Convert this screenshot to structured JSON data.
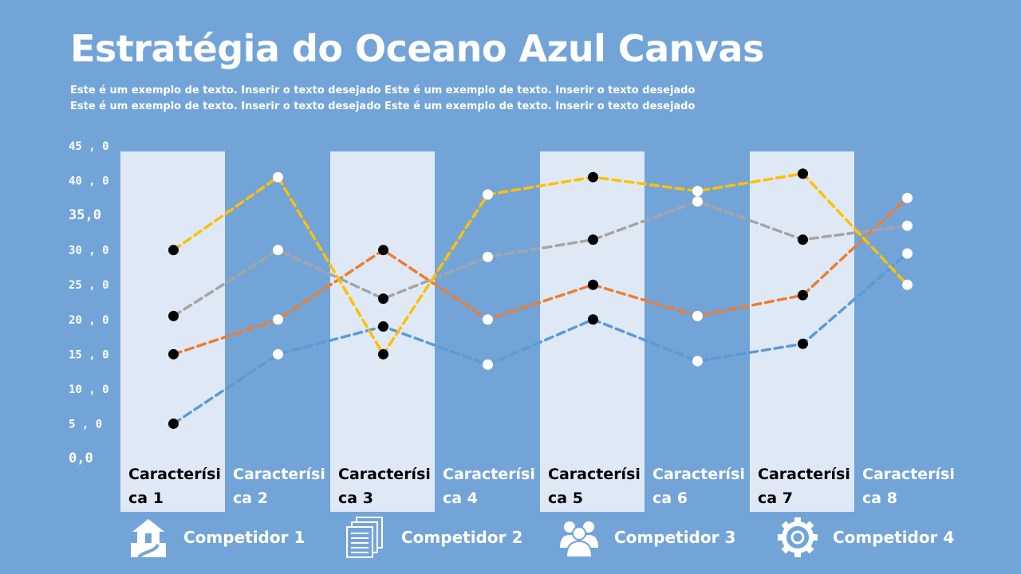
{
  "title": "Estratégia do Oceano Azul Canvas",
  "subtitle_lines": [
    "Este é um exemplo de texto. Inserir o texto desejado Este é um exemplo de texto. Inserir o texto desejado",
    "Este é um exemplo de texto. Inserir o texto desejado Este é um exemplo de texto. Inserir o texto desejado"
  ],
  "chart_data": {
    "type": "line",
    "categories": [
      "Característica 1",
      "Característica 2",
      "Característica 3",
      "Característica 4",
      "Característica 5",
      "Característica 6",
      "Característica 7",
      "Característica 8"
    ],
    "category_label_lines": [
      [
        "Caracterísi",
        "ca 1"
      ],
      [
        "Caracterísi",
        "ca 2"
      ],
      [
        "Caracterísi",
        "ca 3"
      ],
      [
        "Caracterísi",
        "ca 4"
      ],
      [
        "Caracterísi",
        "ca 5"
      ],
      [
        "Caracterísi",
        "ca 6"
      ],
      [
        "Caracterísi",
        "ca 7"
      ],
      [
        "Caracterísi",
        "ca 8"
      ]
    ],
    "y_ticks": [
      "0,0",
      "5 , 0",
      "10 , 0",
      "15 , 0",
      "20 , 0",
      "25 , 0",
      "30 , 0",
      "35,0",
      "40 , 0",
      "45 , 0"
    ],
    "y_tick_values": [
      0,
      5,
      10,
      15,
      20,
      25,
      30,
      35,
      40,
      45
    ],
    "ylim": [
      0,
      45
    ],
    "line_style": "dashed",
    "series": [
      {
        "name": "Competidor 1",
        "color": "#5b9bd5",
        "values": [
          5,
          15,
          19,
          13.5,
          20,
          14,
          16.5,
          29.5
        ]
      },
      {
        "name": "Competidor 2",
        "color": "#ed7d31",
        "values": [
          15,
          20,
          30,
          20,
          25,
          20.5,
          23.5,
          37.5
        ]
      },
      {
        "name": "Competidor 3",
        "color": "#a5a5a5",
        "values": [
          20.5,
          30,
          23,
          29,
          31.5,
          37,
          31.5,
          33.5
        ]
      },
      {
        "name": "Competidor 4",
        "color": "#ffc000",
        "values": [
          30,
          40.5,
          15,
          38,
          40.5,
          38.5,
          41,
          25
        ]
      }
    ],
    "highlighted_columns": [
      1,
      3,
      5,
      7
    ],
    "highlight_color": "#dfe9f6",
    "marker_dark": "#000000",
    "marker_light": "#ffffff"
  },
  "legend": [
    {
      "label": "Competidor 1",
      "icon": "house-icon"
    },
    {
      "label": "Competidor 2",
      "icon": "documents-icon"
    },
    {
      "label": "Competidor 3",
      "icon": "group-icon"
    },
    {
      "label": "Competidor 4",
      "icon": "gear-icon"
    }
  ]
}
